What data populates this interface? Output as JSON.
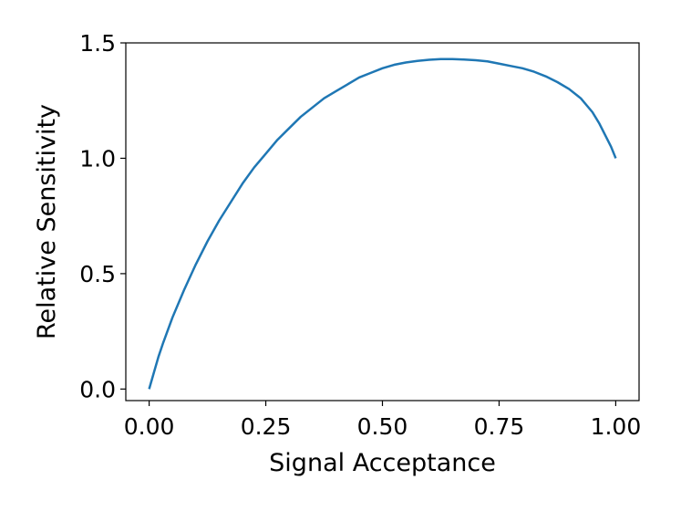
{
  "chart_data": {
    "type": "line",
    "title": "",
    "xlabel": "Signal Acceptance",
    "ylabel": "Relative Sensitivity",
    "xlim": [
      -0.05,
      1.05
    ],
    "ylim": [
      -0.05,
      1.5
    ],
    "grid": false,
    "legend": "none",
    "xticks": [
      {
        "value": 0.0,
        "label": "0.00"
      },
      {
        "value": 0.25,
        "label": "0.25"
      },
      {
        "value": 0.5,
        "label": "0.50"
      },
      {
        "value": 0.75,
        "label": "0.75"
      },
      {
        "value": 1.0,
        "label": "1.00"
      }
    ],
    "yticks": [
      {
        "value": 0.0,
        "label": "0.0"
      },
      {
        "value": 0.5,
        "label": "0.5"
      },
      {
        "value": 1.0,
        "label": "1.0"
      },
      {
        "value": 1.5,
        "label": "1.5"
      }
    ],
    "series": [
      {
        "color": "#1f77b4",
        "x": [
          0.0,
          0.01,
          0.02,
          0.03,
          0.05,
          0.075,
          0.1,
          0.125,
          0.15,
          0.175,
          0.2,
          0.225,
          0.25,
          0.275,
          0.3,
          0.325,
          0.35,
          0.375,
          0.4,
          0.425,
          0.45,
          0.475,
          0.5,
          0.525,
          0.55,
          0.575,
          0.6,
          0.625,
          0.65,
          0.675,
          0.7,
          0.725,
          0.75,
          0.775,
          0.8,
          0.825,
          0.85,
          0.875,
          0.9,
          0.925,
          0.95,
          0.965,
          0.98,
          0.99,
          1.0
        ],
        "y": [
          0.0,
          0.07,
          0.14,
          0.2,
          0.31,
          0.43,
          0.54,
          0.64,
          0.73,
          0.81,
          0.89,
          0.96,
          1.02,
          1.08,
          1.13,
          1.18,
          1.22,
          1.26,
          1.29,
          1.32,
          1.35,
          1.37,
          1.39,
          1.405,
          1.415,
          1.422,
          1.427,
          1.43,
          1.43,
          1.428,
          1.425,
          1.42,
          1.41,
          1.4,
          1.39,
          1.375,
          1.355,
          1.33,
          1.3,
          1.26,
          1.2,
          1.15,
          1.09,
          1.05,
          1.0
        ]
      }
    ]
  }
}
